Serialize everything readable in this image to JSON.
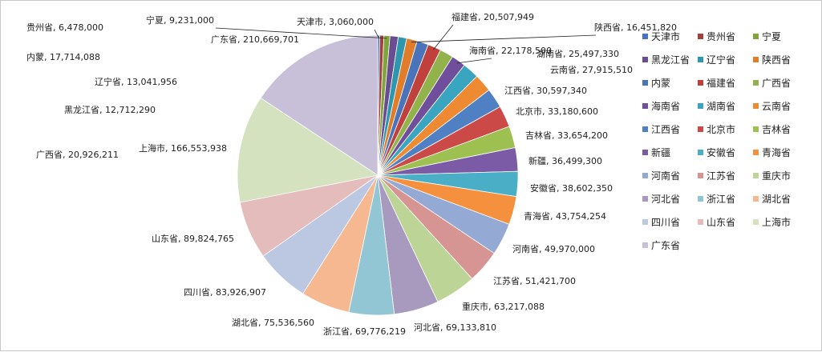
{
  "chart_data": {
    "type": "pie",
    "title": "",
    "legend_position": "right",
    "slices": [
      {
        "name": "天津市",
        "value": 3060000,
        "color": "#4472C4"
      },
      {
        "name": "贵州省",
        "value": 6478000,
        "color": "#A0413E"
      },
      {
        "name": "宁夏",
        "value": 9231000,
        "color": "#7FA43B"
      },
      {
        "name": "黑龙江省",
        "value": 12712290,
        "color": "#6A4C93"
      },
      {
        "name": "辽宁省",
        "value": 13041956,
        "color": "#2E97AE"
      },
      {
        "name": "陕西省",
        "value": 16451820,
        "color": "#E07C2A"
      },
      {
        "name": "内蒙",
        "value": 17714088,
        "color": "#4A74BA"
      },
      {
        "name": "福建省",
        "value": 20507949,
        "color": "#C0413C"
      },
      {
        "name": "广西省",
        "value": 20926211,
        "color": "#92B34B"
      },
      {
        "name": "海南省",
        "value": 22178500,
        "color": "#6F4F9C"
      },
      {
        "name": "湖南省",
        "value": 25497330,
        "color": "#3AA5C0"
      },
      {
        "name": "云南省",
        "value": 27915510,
        "color": "#EE8A32"
      },
      {
        "name": "江西省",
        "value": 30597340,
        "color": "#4F80C4"
      },
      {
        "name": "北京市",
        "value": 33180600,
        "color": "#CB4A47"
      },
      {
        "name": "吉林省",
        "value": 33654200,
        "color": "#9DC051"
      },
      {
        "name": "新疆",
        "value": 36499300,
        "color": "#7C5BA6"
      },
      {
        "name": "安徽省",
        "value": 38602350,
        "color": "#4AAFC6"
      },
      {
        "name": "青海省",
        "value": 43754254,
        "color": "#F5913E"
      },
      {
        "name": "河南省",
        "value": 49970000,
        "color": "#94A9D4"
      },
      {
        "name": "江苏省",
        "value": 51421700,
        "color": "#D69592"
      },
      {
        "name": "重庆市",
        "value": 63217088,
        "color": "#BDD497"
      },
      {
        "name": "河北省",
        "value": 69133810,
        "color": "#A89ABF"
      },
      {
        "name": "浙江省",
        "value": 69776219,
        "color": "#92C6D5"
      },
      {
        "name": "湖北省",
        "value": 75536560,
        "color": "#F6B891"
      },
      {
        "name": "四川省",
        "value": 83926907,
        "color": "#BCC7E1"
      },
      {
        "name": "山东省",
        "value": 89824765,
        "color": "#E3BCBB"
      },
      {
        "name": "上海市",
        "value": 166553938,
        "color": "#D4E2BF"
      },
      {
        "name": "广东省",
        "value": 210669701,
        "color": "#C8C0D9"
      }
    ],
    "labels": [
      "天津市, 3,060,000",
      "贵州省, 6,478,000",
      "宁夏, 9,231,000",
      "黑龙江省, 12,712,290",
      "辽宁省, 13,041,956",
      "陕西省, 16,451,820",
      "内蒙, 17,714,088",
      "福建省, 20,507,949",
      "广西省, 20,926,211",
      "海南省, 22,178,500",
      "湖南省, 25,497,330",
      "云南省, 27,915,510",
      "江西省, 30,597,340",
      "北京市, 33,180,600",
      "吉林省, 33,654,200",
      "新疆, 36,499,300",
      "安徽省, 38,602,350",
      "青海省, 43,754,254",
      "河南省, 49,970,000",
      "江苏省, 51,421,700",
      "重庆市, 63,217,088",
      "河北省, 69,133,810",
      "浙江省, 69,776,219",
      "湖北省, 75,536,560",
      "四川省, 83,926,907",
      "山东省, 89,824,765",
      "上海市, 166,553,938",
      "广东省, 210,669,701"
    ]
  }
}
